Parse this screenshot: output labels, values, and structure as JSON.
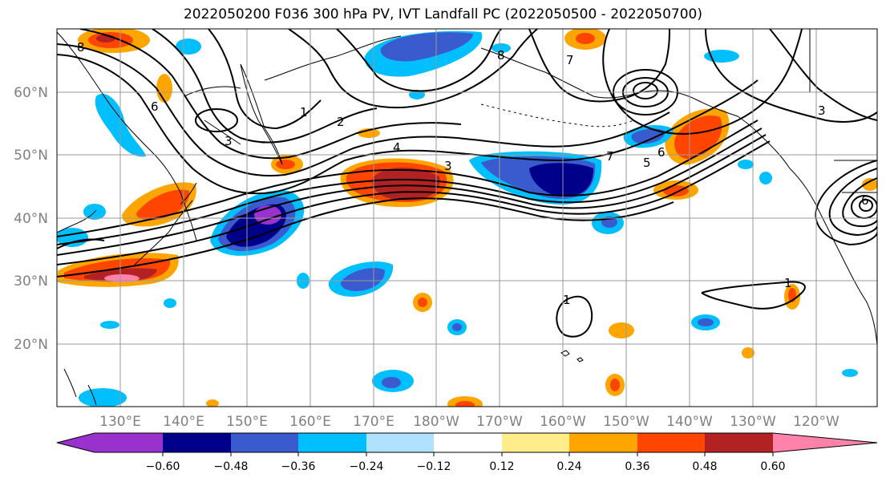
{
  "title": "2022050200 F036 300 hPa PV, IVT Landfall PC (2022050500 - 2022050700)",
  "map": {
    "lon_labels": [
      "130°E",
      "140°E",
      "150°E",
      "160°E",
      "170°E",
      "180°W",
      "170°W",
      "160°W",
      "150°W",
      "140°W",
      "130°W",
      "120°W"
    ],
    "lat_labels": [
      "60°N",
      "50°N",
      "40°N",
      "30°N",
      "20°N"
    ],
    "contour_labels": [
      "8",
      "8",
      "7",
      "6",
      "1",
      "2",
      "3",
      "4",
      "3",
      "7",
      "6",
      "5",
      "3",
      "6",
      "1",
      "1"
    ]
  },
  "colorbar": {
    "tick_labels": [
      "−0.60",
      "−0.48",
      "−0.36",
      "−0.24",
      "−0.12",
      "0.12",
      "0.24",
      "0.36",
      "0.48",
      "0.60"
    ],
    "colors": [
      "#9932cc",
      "#00008b",
      "#3a5bcd",
      "#00bfff",
      "#b0e2ff",
      "#ffffff",
      "#ffec8b",
      "#ffa500",
      "#ff4500",
      "#b22222",
      "#ff82ab"
    ]
  }
}
